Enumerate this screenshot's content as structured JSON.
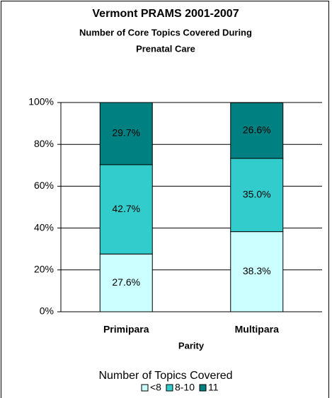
{
  "chart_data": {
    "type": "stacked_bar",
    "title": "Vermont PRAMS 2001-2007",
    "subtitle": [
      "Number of Core Topics Covered During",
      "Prenatal Care"
    ],
    "categories": [
      "Primipara",
      "Multipara"
    ],
    "x_label": "Parity",
    "legend_title": "Number of Topics Covered",
    "series": [
      {
        "name": "<8",
        "color": "#ccffff",
        "values": [
          27.6,
          38.3
        ],
        "value_labels": [
          "27.6%",
          "38.3%"
        ]
      },
      {
        "name": "8-10",
        "color": "#33cccc",
        "values": [
          42.7,
          35.0
        ],
        "value_labels": [
          "42.7%",
          "35.0%"
        ]
      },
      {
        "name": "11",
        "color": "#008080",
        "values": [
          29.7,
          26.6
        ],
        "value_labels": [
          "29.7%",
          "26.6%"
        ]
      }
    ],
    "ylim": [
      0,
      100
    ],
    "yticks": [
      {
        "value": 0,
        "label": "0%"
      },
      {
        "value": 20,
        "label": "20%"
      },
      {
        "value": 40,
        "label": "40%"
      },
      {
        "value": 60,
        "label": "60%"
      },
      {
        "value": 80,
        "label": "80%"
      },
      {
        "value": 100,
        "label": "100%"
      }
    ],
    "grid": true,
    "legend": "bottom"
  }
}
